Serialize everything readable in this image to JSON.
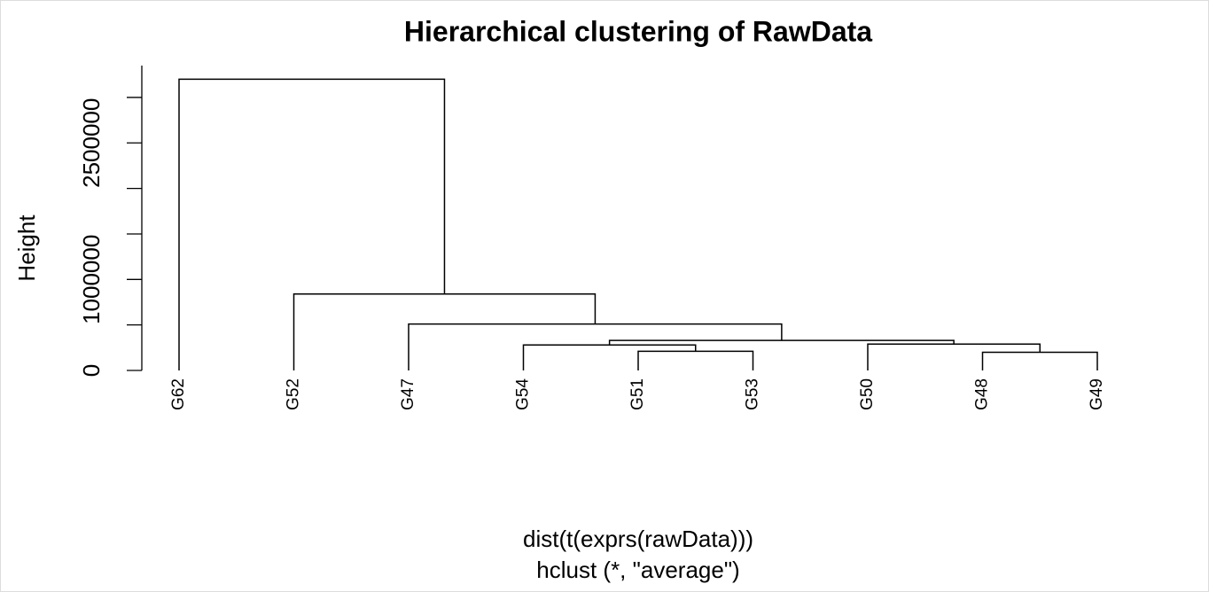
{
  "chart_data": {
    "type": "dendrogram",
    "title": "Hierarchical clustering of RawData",
    "ylabel": "Height",
    "xlabel": "dist(t(exprs(rawData)))",
    "subtitle": "hclust (*, \"average\")",
    "labels": [
      "G62",
      "G52",
      "G47",
      "G54",
      "G51",
      "G53",
      "G50",
      "G48",
      "G49"
    ],
    "merge": [
      [
        -8,
        -9
      ],
      [
        -5,
        -6
      ],
      [
        -4,
        2
      ],
      [
        -7,
        1
      ],
      [
        3,
        4
      ],
      [
        -3,
        5
      ],
      [
        -2,
        6
      ],
      [
        -1,
        7
      ]
    ],
    "height": [
      200000,
      210000,
      280000,
      290000,
      330000,
      510000,
      840000,
      3200000
    ],
    "ylim": [
      0,
      3350000
    ],
    "yticks": [
      0,
      {
        "value": 500000
      },
      1000000,
      {
        "value": 1500000
      },
      {
        "value": 2000000
      },
      2500000,
      {
        "value": 3000000
      }
    ],
    "color": "#000000"
  }
}
